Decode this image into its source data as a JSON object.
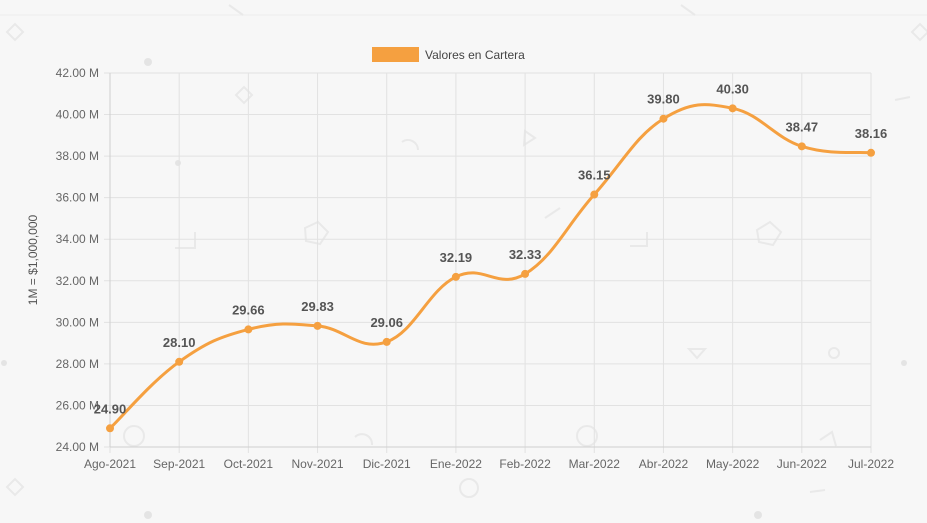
{
  "chart_data": {
    "type": "line",
    "categories": [
      "Ago-2021",
      "Sep-2021",
      "Oct-2021",
      "Nov-2021",
      "Dic-2021",
      "Ene-2022",
      "Feb-2022",
      "Mar-2022",
      "Abr-2022",
      "May-2022",
      "Jun-2022",
      "Jul-2022"
    ],
    "series": [
      {
        "name": "Valores en Cartera",
        "values": [
          24.9,
          28.1,
          29.66,
          29.83,
          29.06,
          32.19,
          32.33,
          36.15,
          39.8,
          40.3,
          38.47,
          38.16
        ],
        "color": "#f5a040"
      }
    ],
    "value_labels": [
      "24.90",
      "28.10",
      "29.66",
      "29.83",
      "29.06",
      "32.19",
      "32.33",
      "36.15",
      "39.80",
      "40.30",
      "38.47",
      "38.16"
    ],
    "ylabel": "1M = $1,000,000",
    "ylim": [
      24,
      42
    ],
    "yticks": [
      24,
      26,
      28,
      30,
      32,
      34,
      36,
      38,
      40,
      42
    ],
    "ytick_labels": [
      "24.00 M",
      "26.00 M",
      "28.00 M",
      "30.00 M",
      "32.00 M",
      "34.00 M",
      "36.00 M",
      "38.00 M",
      "40.00 M",
      "42.00 M"
    ],
    "legend_position": "top-center",
    "grid": true,
    "smooth": true
  },
  "colors": {
    "grid": "#e2e2e2",
    "axis": "#cfcfcf",
    "background": "#f7f7f7"
  }
}
